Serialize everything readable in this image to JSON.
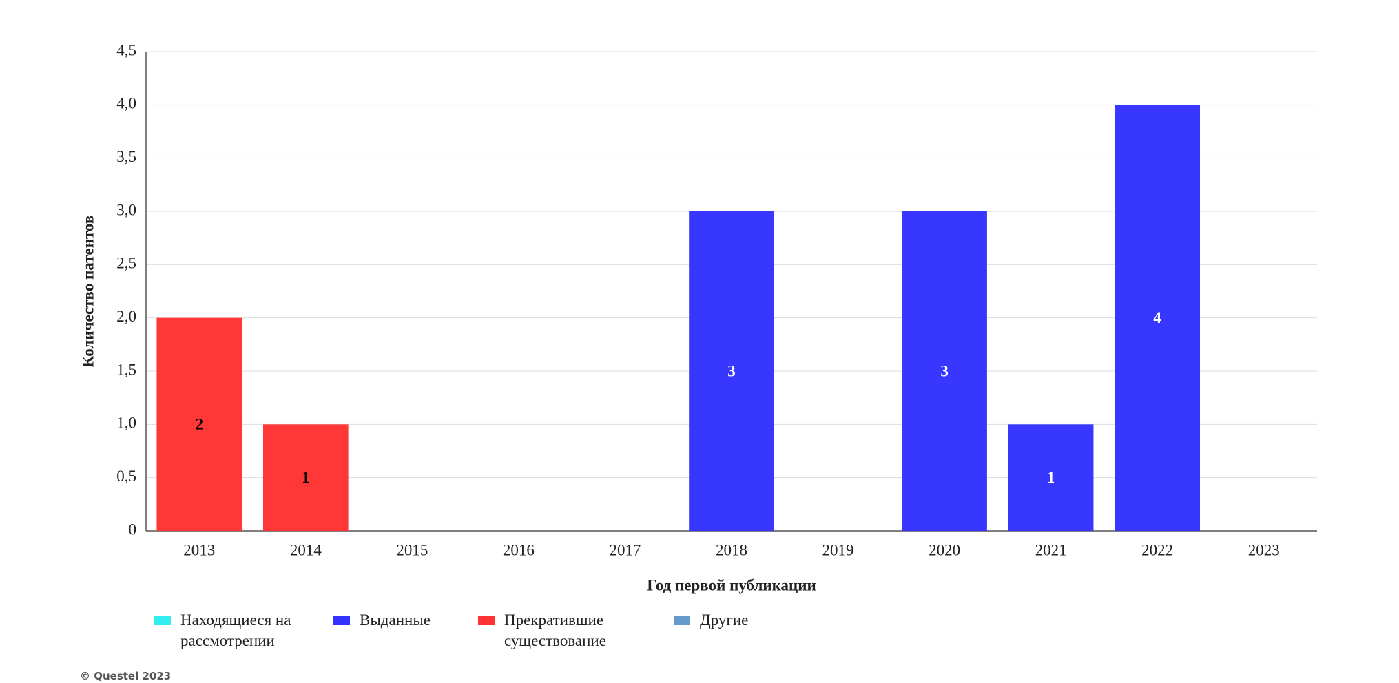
{
  "chart_data": {
    "type": "stacked_bar",
    "x_label": "Год первой публикации",
    "y_label": "Количество патентов",
    "categories": [
      "2013",
      "2014",
      "2015",
      "2016",
      "2017",
      "2018",
      "2019",
      "2020",
      "2021",
      "2022",
      "2023"
    ],
    "series": [
      {
        "name": "Находящиеся на рассмотрении",
        "color": "#33eeee",
        "label_color": "#000000",
        "values": [
          0,
          0,
          0,
          0,
          0,
          0,
          0,
          0,
          0,
          0,
          0
        ]
      },
      {
        "name": "Выданные",
        "color": "#3333ff",
        "label_color": "#ffffff",
        "values": [
          0,
          0,
          0,
          0,
          0,
          3,
          0,
          3,
          1,
          4,
          0
        ]
      },
      {
        "name": "Прекратившие существование",
        "color": "#ff3333",
        "label_color": "#000000",
        "values": [
          2,
          1,
          0,
          0,
          0,
          0,
          0,
          0,
          0,
          0,
          0
        ]
      },
      {
        "name": "Другие",
        "color": "#6699cc",
        "label_color": "#000000",
        "values": [
          0,
          0,
          0,
          0,
          0,
          0,
          0,
          0,
          0,
          0,
          0
        ]
      }
    ],
    "ylim": [
      0,
      4.5
    ],
    "yticks": [
      0,
      {
        "value": 0.5,
        "label": "0,5"
      },
      {
        "value": 1,
        "label": "1,0"
      },
      {
        "value": 1.5,
        "label": "1,5"
      },
      {
        "value": 2,
        "label": "2,0"
      },
      {
        "value": 2.5,
        "label": "2,5"
      },
      {
        "value": 3,
        "label": "3,0"
      },
      {
        "value": 3.5,
        "label": "3,5"
      },
      {
        "value": 4,
        "label": "4,0"
      },
      {
        "value": 4.5,
        "label": "4,5"
      }
    ],
    "grid": true,
    "legend": "bottom",
    "credit": "© Questel 2023"
  }
}
